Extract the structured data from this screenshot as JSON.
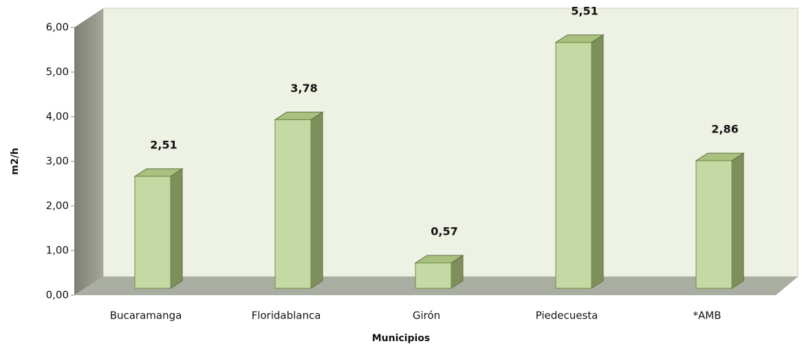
{
  "chart_data": {
    "type": "bar3d",
    "xlabel": "Municipios",
    "ylabel": "m2/h",
    "categories": [
      "Bucaramanga",
      "Floridablanca",
      "Girón",
      "Piedecuesta",
      "*AMB"
    ],
    "values": [
      2.51,
      3.78,
      0.57,
      5.51,
      2.86
    ],
    "value_labels": [
      "2,51",
      "3,78",
      "0,57",
      "5,51",
      "2,86"
    ],
    "color": "#c5d9a5",
    "ylim": [
      0,
      6
    ],
    "yticks": [
      {
        "value": 0,
        "label": "0,00"
      },
      {
        "value": 1,
        "label": "1,00"
      },
      {
        "value": 2,
        "label": "2,00"
      },
      {
        "value": 3,
        "label": "3,00"
      },
      {
        "value": 4,
        "label": "4,00"
      },
      {
        "value": 5,
        "label": "5,00"
      },
      {
        "value": 6,
        "label": "6,00"
      }
    ],
    "grid": false
  }
}
